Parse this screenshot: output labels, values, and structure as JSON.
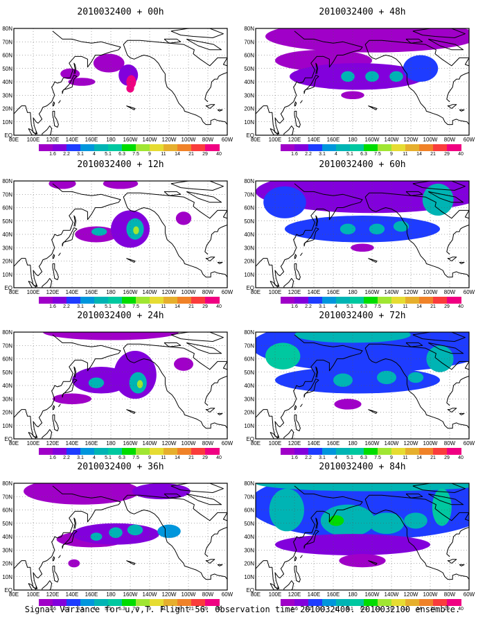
{
  "panels": [
    {
      "title": "2010032400 + 00h",
      "blobs": [
        {
          "lon": 138,
          "lat": 46,
          "rx": 10,
          "ry": 4,
          "level": 0
        },
        {
          "lon": 150,
          "lat": 40,
          "rx": 14,
          "ry": 3,
          "level": 0
        },
        {
          "lon": 178,
          "lat": 54,
          "rx": 16,
          "ry": 7,
          "level": 0
        },
        {
          "lon": 198,
          "lat": 45,
          "rx": 10,
          "ry": 8,
          "level": 1
        },
        {
          "lon": 201,
          "lat": 40,
          "rx": 5,
          "ry": 5,
          "level": 13
        },
        {
          "lon": 200,
          "lat": 35,
          "rx": 4,
          "ry": 3,
          "level": 12
        }
      ]
    },
    {
      "title": "2010032400 + 12h",
      "blobs": [
        {
          "lon": 130,
          "lat": 78,
          "rx": 14,
          "ry": 4,
          "level": 0
        },
        {
          "lon": 190,
          "lat": 78,
          "rx": 18,
          "ry": 4,
          "level": 0
        },
        {
          "lon": 255,
          "lat": 52,
          "rx": 8,
          "ry": 5,
          "level": 0
        },
        {
          "lon": 165,
          "lat": 40,
          "rx": 22,
          "ry": 6,
          "level": 0
        },
        {
          "lon": 168,
          "lat": 42,
          "rx": 8,
          "ry": 3,
          "level": 4
        },
        {
          "lon": 200,
          "lat": 44,
          "rx": 20,
          "ry": 14,
          "level": 1
        },
        {
          "lon": 205,
          "lat": 44,
          "rx": 9,
          "ry": 8,
          "level": 4
        },
        {
          "lon": 206,
          "lat": 43,
          "rx": 3,
          "ry": 3,
          "level": 7
        }
      ]
    },
    {
      "title": "2010032400 + 24h",
      "blobs": [
        {
          "lon": 180,
          "lat": 80,
          "rx": 70,
          "ry": 6,
          "level": 0
        },
        {
          "lon": 140,
          "lat": 30,
          "rx": 20,
          "ry": 4,
          "level": 0
        },
        {
          "lon": 170,
          "lat": 44,
          "rx": 30,
          "ry": 10,
          "level": 1
        },
        {
          "lon": 165,
          "lat": 42,
          "rx": 8,
          "ry": 4,
          "level": 4
        },
        {
          "lon": 205,
          "lat": 48,
          "rx": 22,
          "ry": 18,
          "level": 1
        },
        {
          "lon": 208,
          "lat": 42,
          "rx": 9,
          "ry": 8,
          "level": 4
        },
        {
          "lon": 210,
          "lat": 41,
          "rx": 3,
          "ry": 3,
          "level": 7
        },
        {
          "lon": 255,
          "lat": 56,
          "rx": 10,
          "ry": 5,
          "level": 0
        }
      ]
    },
    {
      "title": "2010032400 + 36h",
      "blobs": [
        {
          "lon": 150,
          "lat": 74,
          "rx": 60,
          "ry": 10,
          "level": 0
        },
        {
          "lon": 232,
          "lat": 74,
          "rx": 30,
          "ry": 6,
          "level": 1
        },
        {
          "lon": 160,
          "lat": 38,
          "rx": 36,
          "ry": 6,
          "level": 0
        },
        {
          "lon": 185,
          "lat": 42,
          "rx": 45,
          "ry": 8,
          "level": 1
        },
        {
          "lon": 165,
          "lat": 40,
          "rx": 6,
          "ry": 3,
          "level": 4
        },
        {
          "lon": 185,
          "lat": 43,
          "rx": 7,
          "ry": 4,
          "level": 4
        },
        {
          "lon": 205,
          "lat": 45,
          "rx": 8,
          "ry": 4,
          "level": 4
        },
        {
          "lon": 240,
          "lat": 44,
          "rx": 12,
          "ry": 5,
          "level": 3
        },
        {
          "lon": 142,
          "lat": 20,
          "rx": 6,
          "ry": 3,
          "level": 0
        }
      ]
    },
    {
      "title": "2010032400 + 48h",
      "blobs": [
        {
          "lon": 200,
          "lat": 74,
          "rx": 110,
          "ry": 12,
          "level": 0
        },
        {
          "lon": 150,
          "lat": 56,
          "rx": 50,
          "ry": 8,
          "level": 0
        },
        {
          "lon": 185,
          "lat": 44,
          "rx": 70,
          "ry": 10,
          "level": 1
        },
        {
          "lon": 175,
          "lat": 44,
          "rx": 7,
          "ry": 4,
          "level": 4
        },
        {
          "lon": 200,
          "lat": 44,
          "rx": 7,
          "ry": 4,
          "level": 4
        },
        {
          "lon": 225,
          "lat": 44,
          "rx": 7,
          "ry": 4,
          "level": 4
        },
        {
          "lon": 250,
          "lat": 50,
          "rx": 18,
          "ry": 10,
          "level": 2
        },
        {
          "lon": 180,
          "lat": 30,
          "rx": 12,
          "ry": 3,
          "level": 0
        }
      ]
    },
    {
      "title": "2010032400 + 60h",
      "blobs": [
        {
          "lon": 200,
          "lat": 72,
          "rx": 120,
          "ry": 16,
          "level": 1
        },
        {
          "lon": 110,
          "lat": 64,
          "rx": 22,
          "ry": 12,
          "level": 2
        },
        {
          "lon": 268,
          "lat": 66,
          "rx": 16,
          "ry": 12,
          "level": 4
        },
        {
          "lon": 190,
          "lat": 44,
          "rx": 80,
          "ry": 10,
          "level": 2
        },
        {
          "lon": 175,
          "lat": 44,
          "rx": 8,
          "ry": 4,
          "level": 4
        },
        {
          "lon": 205,
          "lat": 44,
          "rx": 8,
          "ry": 4,
          "level": 4
        },
        {
          "lon": 230,
          "lat": 46,
          "rx": 8,
          "ry": 4,
          "level": 4
        },
        {
          "lon": 190,
          "lat": 30,
          "rx": 12,
          "ry": 3,
          "level": 0
        }
      ]
    },
    {
      "title": "2010032400 + 72h",
      "blobs": [
        {
          "lon": 200,
          "lat": 70,
          "rx": 125,
          "ry": 20,
          "level": 2
        },
        {
          "lon": 180,
          "lat": 78,
          "rx": 60,
          "ry": 6,
          "level": 4
        },
        {
          "lon": 108,
          "lat": 62,
          "rx": 18,
          "ry": 10,
          "level": 5
        },
        {
          "lon": 270,
          "lat": 60,
          "rx": 14,
          "ry": 10,
          "level": 4
        },
        {
          "lon": 185,
          "lat": 44,
          "rx": 85,
          "ry": 10,
          "level": 2
        },
        {
          "lon": 170,
          "lat": 44,
          "rx": 10,
          "ry": 5,
          "level": 4
        },
        {
          "lon": 215,
          "lat": 46,
          "rx": 10,
          "ry": 5,
          "level": 4
        },
        {
          "lon": 245,
          "lat": 46,
          "rx": 8,
          "ry": 4,
          "level": 4
        },
        {
          "lon": 175,
          "lat": 26,
          "rx": 14,
          "ry": 4,
          "level": 0
        }
      ]
    },
    {
      "title": "2010032400 + 84h",
      "blobs": [
        {
          "lon": 200,
          "lat": 64,
          "rx": 128,
          "ry": 26,
          "level": 2
        },
        {
          "lon": 200,
          "lat": 80,
          "rx": 120,
          "ry": 6,
          "level": 4
        },
        {
          "lon": 112,
          "lat": 60,
          "rx": 18,
          "ry": 16,
          "level": 4
        },
        {
          "lon": 272,
          "lat": 62,
          "rx": 10,
          "ry": 14,
          "level": 5
        },
        {
          "lon": 175,
          "lat": 52,
          "rx": 28,
          "ry": 12,
          "level": 4
        },
        {
          "lon": 163,
          "lat": 52,
          "rx": 8,
          "ry": 4,
          "level": 6
        },
        {
          "lon": 215,
          "lat": 50,
          "rx": 18,
          "ry": 8,
          "level": 4
        },
        {
          "lon": 245,
          "lat": 52,
          "rx": 12,
          "ry": 6,
          "level": 4
        },
        {
          "lon": 180,
          "lat": 34,
          "rx": 80,
          "ry": 8,
          "level": 1
        },
        {
          "lon": 190,
          "lat": 22,
          "rx": 24,
          "ry": 5,
          "level": 0
        }
      ]
    }
  ],
  "map_extent": {
    "lon_min": 80,
    "lon_max": 300,
    "lat_min": 0,
    "lat_max": 80
  },
  "lat_ticks": [
    {
      "lat": 80,
      "label": "80N"
    },
    {
      "lat": 70,
      "label": "70N"
    },
    {
      "lat": 60,
      "label": "60N"
    },
    {
      "lat": 50,
      "label": "50N"
    },
    {
      "lat": 40,
      "label": "40N"
    },
    {
      "lat": 30,
      "label": "30N"
    },
    {
      "lat": 20,
      "label": "20N"
    },
    {
      "lat": 10,
      "label": "10N"
    },
    {
      "lat": 0,
      "label": "EQ"
    }
  ],
  "lon_ticks": [
    {
      "lon": 80,
      "label": "80E"
    },
    {
      "lon": 100,
      "label": "100E"
    },
    {
      "lon": 120,
      "label": "120E"
    },
    {
      "lon": 140,
      "label": "140E"
    },
    {
      "lon": 160,
      "label": "160E"
    },
    {
      "lon": 180,
      "label": "180"
    },
    {
      "lon": 200,
      "label": "160W"
    },
    {
      "lon": 220,
      "label": "140W"
    },
    {
      "lon": 240,
      "label": "120W"
    },
    {
      "lon": 260,
      "label": "100W"
    },
    {
      "lon": 280,
      "label": "80W"
    },
    {
      "lon": 300,
      "label": "60W"
    }
  ],
  "colorbar": {
    "colors": [
      "#a000c8",
      "#8200dc",
      "#1e3cff",
      "#0096dc",
      "#00b4b4",
      "#00c8a0",
      "#00dc00",
      "#a0e632",
      "#e6dc32",
      "#e6af2d",
      "#f08228",
      "#fa3c3c",
      "#f00082"
    ],
    "labels": [
      "1.6",
      "2.2",
      "3.1",
      "4",
      "5.1",
      "6.3",
      "7.5",
      "9",
      "11",
      "14",
      "21",
      "29",
      "40"
    ]
  },
  "footer": "Signal Variance for u,v,T. Flight 56. Observation time 2010032400. 2010032100 ensemble."
}
